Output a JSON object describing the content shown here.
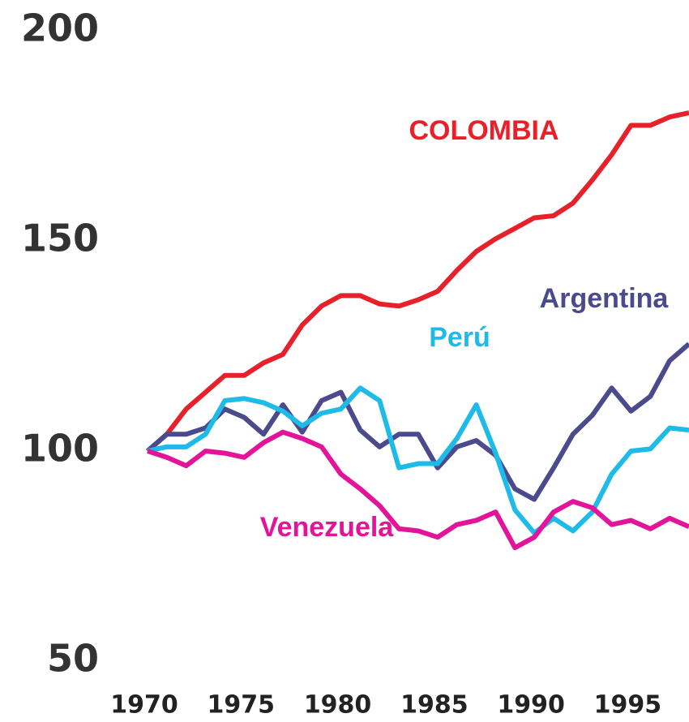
{
  "chart_data": {
    "type": "line",
    "x": [
      1970,
      1971,
      1972,
      1973,
      1974,
      1975,
      1976,
      1977,
      1978,
      1979,
      1980,
      1981,
      1982,
      1983,
      1984,
      1985,
      1986,
      1987,
      1988,
      1989,
      1990,
      1991,
      1992,
      1993,
      1994,
      1995,
      1996,
      1997,
      1998
    ],
    "series": [
      {
        "name": "COLOMBIA",
        "color": "#e8202a",
        "values": [
          100,
          104,
          110,
          114,
          118,
          118,
          121,
          123,
          130,
          134.5,
          137,
          137,
          135,
          134.5,
          136,
          138,
          143,
          147.5,
          150.5,
          153,
          155.5,
          156,
          159,
          164.5,
          170.5,
          177.5,
          177.5,
          179.5,
          180.5
        ]
      },
      {
        "name": "Argentina",
        "color": "#4b4a8c",
        "values": [
          100,
          104,
          104,
          105.5,
          110,
          108,
          104,
          111,
          104.5,
          112,
          114,
          105,
          101,
          104,
          104,
          96,
          101,
          102.5,
          99,
          91,
          88.5,
          96,
          104,
          108.5,
          115,
          109.5,
          113,
          121.5,
          125.5
        ]
      },
      {
        "name": "Perú",
        "color": "#1fbbe8",
        "values": [
          100,
          101,
          101,
          104,
          112,
          112.5,
          111.5,
          109.5,
          106,
          109,
          110,
          115,
          112,
          96,
          97,
          97,
          103,
          111,
          99.5,
          86,
          80.5,
          84,
          81,
          85.5,
          94.5,
          100,
          100.5,
          105.5,
          105
        ]
      },
      {
        "name": "Venezuela",
        "color": "#e3139a",
        "values": [
          100,
          98.5,
          96.5,
          100,
          99.5,
          98.5,
          102,
          104.5,
          103,
          101,
          94.5,
          91,
          87,
          81.5,
          81,
          79.5,
          82.5,
          83.5,
          85.5,
          77,
          79.5,
          85.5,
          88,
          86.5,
          82.5,
          83.5,
          81.5,
          84,
          82
        ]
      }
    ],
    "xlim": [
      1970,
      1998
    ],
    "xticks": [
      1970,
      1975,
      1980,
      1985,
      1990,
      1995
    ],
    "ylim": [
      50,
      200
    ],
    "yticks": [
      50,
      100,
      150,
      200
    ]
  }
}
